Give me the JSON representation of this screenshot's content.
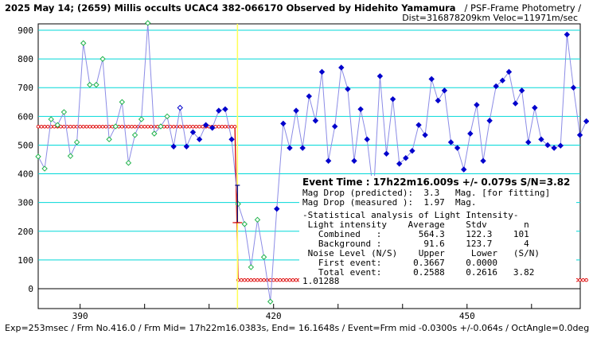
{
  "header": {
    "title_bold": "2025 May 14; (2659) Millis occults UCAC4 382-066170 Observed by Hidehito Yamamura",
    "title_rest": "/ PSF-Frame Photometry /",
    "subtitle": "Dist=316878209km Veloc=11971m/sec"
  },
  "footer": {
    "text": "Exp=253msec / Frm No.416.0 / Frm Mid= 17h22m16.0383s, End= 16.1648s / Event=Frm mid -0.0300s +/-0.064s / OctAngle=0.0deg"
  },
  "info": {
    "event_time": "Event Time : 17h22m16.009s  +/- 0.079s  S/N=3.82",
    "lines": [
      "Mag Drop (predicted):  3.3   Mag. [for fitting]",
      "Mag Drop (measured ):  1.97  Mag.",
      "",
      "-Statistical analysis of Light Intensity-",
      " Light intensity    Average    Stdv       n",
      "   Combined   :       564.3    122.3    101",
      "   Background :        91.6    123.7      4",
      " Noise Level (N/S)    Upper     Lower   (S/N)",
      "   First event:      0.3667    0.0000",
      "   Total event:      0.2588    0.2616   3.82"
    ],
    "marker_label": "1.01288"
  },
  "colors": {
    "grid": "#00d8d8",
    "series_line": "#8c8ce6",
    "green": "#1fb34a",
    "blue": "#0000cc",
    "model": "#dd0000",
    "event_line": "#ffff55",
    "errorbar": "#000080"
  },
  "chart_data": {
    "type": "line",
    "title": "2025 May 14; (2659) Millis occults UCAC4 382-066170 Observed by Hidehito Yamamura",
    "xlim": [
      383.5,
      462
    ],
    "ylim": [
      -50,
      970
    ],
    "xticks": [
      390,
      420,
      450
    ],
    "yticks": [
      0,
      100,
      200,
      300,
      400,
      500,
      600,
      700,
      800,
      900
    ],
    "grid": true,
    "light_curve": [
      {
        "x": 383.5,
        "y": 460,
        "m": "g"
      },
      {
        "x": 384.5,
        "y": 418,
        "m": "g"
      },
      {
        "x": 385.5,
        "y": 590,
        "m": "g"
      },
      {
        "x": 386.5,
        "y": 570,
        "m": "g"
      },
      {
        "x": 387.5,
        "y": 615,
        "m": "g"
      },
      {
        "x": 388.5,
        "y": 462,
        "m": "g"
      },
      {
        "x": 389.5,
        "y": 510,
        "m": "g"
      },
      {
        "x": 390.5,
        "y": 855,
        "m": "g"
      },
      {
        "x": 391.5,
        "y": 710,
        "m": "g"
      },
      {
        "x": 392.5,
        "y": 710,
        "m": "g"
      },
      {
        "x": 393.5,
        "y": 800,
        "m": "g"
      },
      {
        "x": 394.5,
        "y": 520,
        "m": "g"
      },
      {
        "x": 395.5,
        "y": 565,
        "m": "g"
      },
      {
        "x": 396.5,
        "y": 650,
        "m": "g"
      },
      {
        "x": 397.5,
        "y": 438,
        "m": "g"
      },
      {
        "x": 398.5,
        "y": 535,
        "m": "g"
      },
      {
        "x": 399.5,
        "y": 590,
        "m": "g"
      },
      {
        "x": 400.5,
        "y": 925,
        "m": "g"
      },
      {
        "x": 401.5,
        "y": 540,
        "m": "g"
      },
      {
        "x": 402.5,
        "y": 565,
        "m": "g"
      },
      {
        "x": 403.5,
        "y": 600,
        "m": "g"
      },
      {
        "x": 404.5,
        "y": 495,
        "m": "b"
      },
      {
        "x": 405.5,
        "y": 630,
        "m": "b"
      },
      {
        "x": 406.5,
        "y": 495,
        "m": "b"
      },
      {
        "x": 407.5,
        "y": 545,
        "m": "b"
      },
      {
        "x": 408.5,
        "y": 520,
        "m": "b"
      },
      {
        "x": 409.5,
        "y": 570,
        "m": "b"
      },
      {
        "x": 410.5,
        "y": 560,
        "m": "b"
      },
      {
        "x": 411.5,
        "y": 620,
        "m": "b"
      },
      {
        "x": 412.5,
        "y": 625,
        "m": "b"
      },
      {
        "x": 413.5,
        "y": 520,
        "m": "b"
      },
      {
        "x": 414.5,
        "y": 295,
        "m": "g"
      },
      {
        "x": 415.5,
        "y": 225,
        "m": "g"
      },
      {
        "x": 416.5,
        "y": 75,
        "m": "g"
      },
      {
        "x": 417.5,
        "y": 240,
        "m": "g"
      },
      {
        "x": 418.5,
        "y": 110,
        "m": "g"
      },
      {
        "x": 419.5,
        "y": -45,
        "m": "g"
      },
      {
        "x": 420.5,
        "y": 278,
        "m": "b"
      },
      {
        "x": 421.5,
        "y": 575,
        "m": "b"
      },
      {
        "x": 422.5,
        "y": 490,
        "m": "b"
      },
      {
        "x": 423.5,
        "y": 620,
        "m": "b"
      },
      {
        "x": 424.5,
        "y": 490,
        "m": "b"
      },
      {
        "x": 425.5,
        "y": 670,
        "m": "b"
      },
      {
        "x": 426.5,
        "y": 585,
        "m": "b"
      },
      {
        "x": 427.5,
        "y": 755,
        "m": "b"
      },
      {
        "x": 428.5,
        "y": 445,
        "m": "b"
      },
      {
        "x": 429.5,
        "y": 565,
        "m": "b"
      },
      {
        "x": 430.5,
        "y": 770,
        "m": "b"
      },
      {
        "x": 431.5,
        "y": 695,
        "m": "b"
      },
      {
        "x": 432.5,
        "y": 445,
        "m": "b"
      },
      {
        "x": 433.5,
        "y": 625,
        "m": "b"
      },
      {
        "x": 434.5,
        "y": 520,
        "m": "b"
      },
      {
        "x": 435.5,
        "y": 330,
        "m": "b"
      },
      {
        "x": 436.5,
        "y": 740,
        "m": "b"
      },
      {
        "x": 437.5,
        "y": 470,
        "m": "b"
      },
      {
        "x": 438.5,
        "y": 660,
        "m": "b"
      },
      {
        "x": 439.5,
        "y": 435,
        "m": "b"
      },
      {
        "x": 440.5,
        "y": 455,
        "m": "b"
      },
      {
        "x": 441.5,
        "y": 480,
        "m": "b"
      },
      {
        "x": 442.5,
        "y": 570,
        "m": "b"
      },
      {
        "x": 443.5,
        "y": 535,
        "m": "b"
      },
      {
        "x": 444.5,
        "y": 730,
        "m": "b"
      },
      {
        "x": 445.5,
        "y": 655,
        "m": "b"
      },
      {
        "x": 446.5,
        "y": 690,
        "m": "b"
      },
      {
        "x": 447.5,
        "y": 510,
        "m": "b"
      },
      {
        "x": 448.5,
        "y": 490,
        "m": "b"
      },
      {
        "x": 449.5,
        "y": 415,
        "m": "b"
      },
      {
        "x": 450.5,
        "y": 540,
        "m": "b"
      },
      {
        "x": 451.5,
        "y": 640,
        "m": "b"
      },
      {
        "x": 452.5,
        "y": 445,
        "m": "b"
      },
      {
        "x": 453.5,
        "y": 585,
        "m": "b"
      },
      {
        "x": 454.5,
        "y": 705,
        "m": "b"
      },
      {
        "x": 455.5,
        "y": 725,
        "m": "b"
      },
      {
        "x": 456.5,
        "y": 755,
        "m": "b"
      },
      {
        "x": 457.5,
        "y": 645,
        "m": "b"
      },
      {
        "x": 458.5,
        "y": 690,
        "m": "b"
      },
      {
        "x": 459.5,
        "y": 510,
        "m": "b"
      },
      {
        "x": 460.5,
        "y": 630,
        "m": "b"
      },
      {
        "x": 461.5,
        "y": 520,
        "m": "b"
      },
      {
        "x": 462.5,
        "y": 500,
        "m": "b"
      },
      {
        "x": 463.5,
        "y": 490,
        "m": "b"
      },
      {
        "x": 464.5,
        "y": 498,
        "m": "b"
      },
      {
        "x": 465.5,
        "y": 885,
        "m": "b"
      },
      {
        "x": 466.5,
        "y": 700,
        "m": "b"
      },
      {
        "x": 467.5,
        "y": 535,
        "m": "b"
      },
      {
        "x": 468.5,
        "y": 583,
        "m": "b"
      }
    ],
    "model": {
      "high": 564.3,
      "low": 30,
      "drop_start": 414.0,
      "drop_end": 414.5,
      "markers_start": 383.5,
      "markers_end": 468.5,
      "marker_step": 0.5
    },
    "event_x": 414.4,
    "errorbar": {
      "x": 414.4,
      "y": 295,
      "y_hi": 360,
      "y_lo": 230
    }
  }
}
